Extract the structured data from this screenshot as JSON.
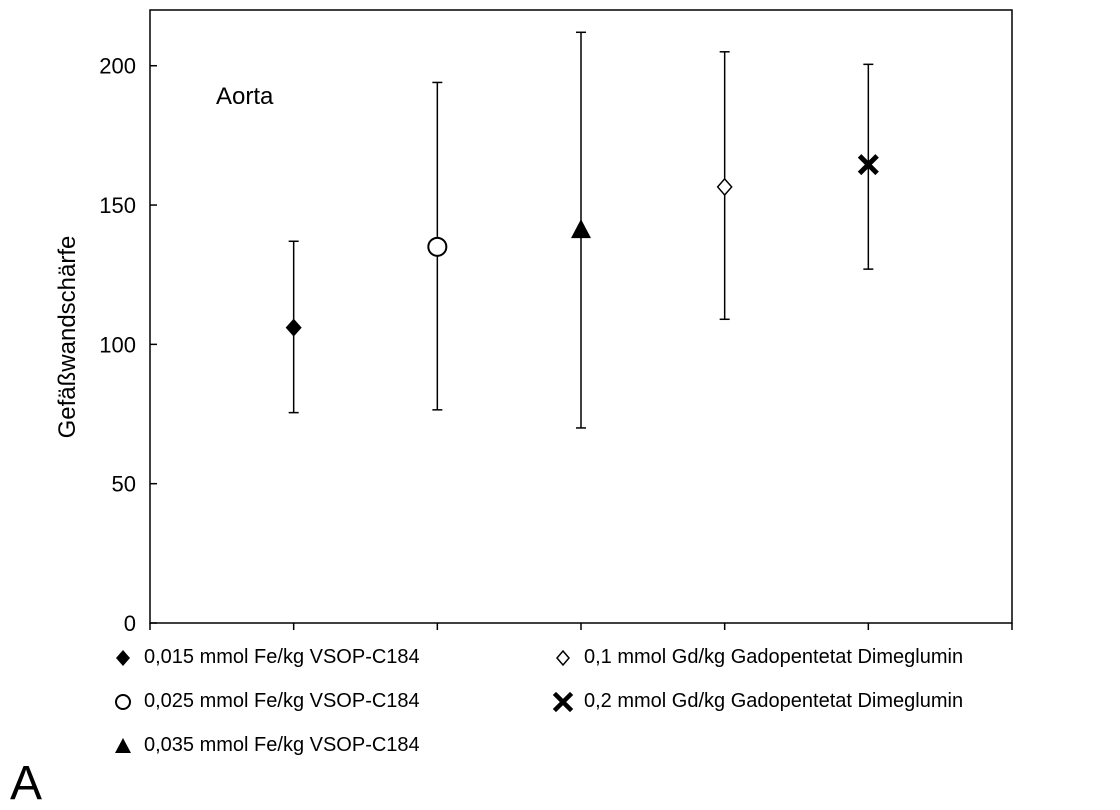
{
  "panel_label": "A",
  "chart_data": {
    "type": "scatter",
    "title": "",
    "annotation": "Aorta",
    "xlabel": "",
    "ylabel": "Gefäßwandschärfe",
    "ylim": [
      0,
      220
    ],
    "yticks": [
      0,
      50,
      100,
      150,
      200
    ],
    "grid": false,
    "legend_position": "bottom",
    "series": [
      {
        "name": "0,015 mmol Fe/kg VSOP-C184",
        "marker": "diamond-filled",
        "x": 1,
        "y": 106,
        "err_low": 75.5,
        "err_high": 137
      },
      {
        "name": "0,025 mmol Fe/kg VSOP-C184",
        "marker": "circle-open",
        "x": 2,
        "y": 135,
        "err_low": 76.5,
        "err_high": 194
      },
      {
        "name": "0,035 mmol Fe/kg VSOP-C184",
        "marker": "triangle-filled",
        "x": 3,
        "y": 141,
        "err_low": 70,
        "err_high": 212
      },
      {
        "name": "0,1 mmol Gd/kg Gadopentetat Dimeglumin",
        "marker": "diamond-open",
        "x": 4,
        "y": 156.5,
        "err_low": 109,
        "err_high": 205
      },
      {
        "name": "0,2 mmol Gd/kg Gadopentetat Dimeglumin",
        "marker": "x-bold",
        "x": 5,
        "y": 164.5,
        "err_low": 127,
        "err_high": 200.5
      }
    ]
  }
}
